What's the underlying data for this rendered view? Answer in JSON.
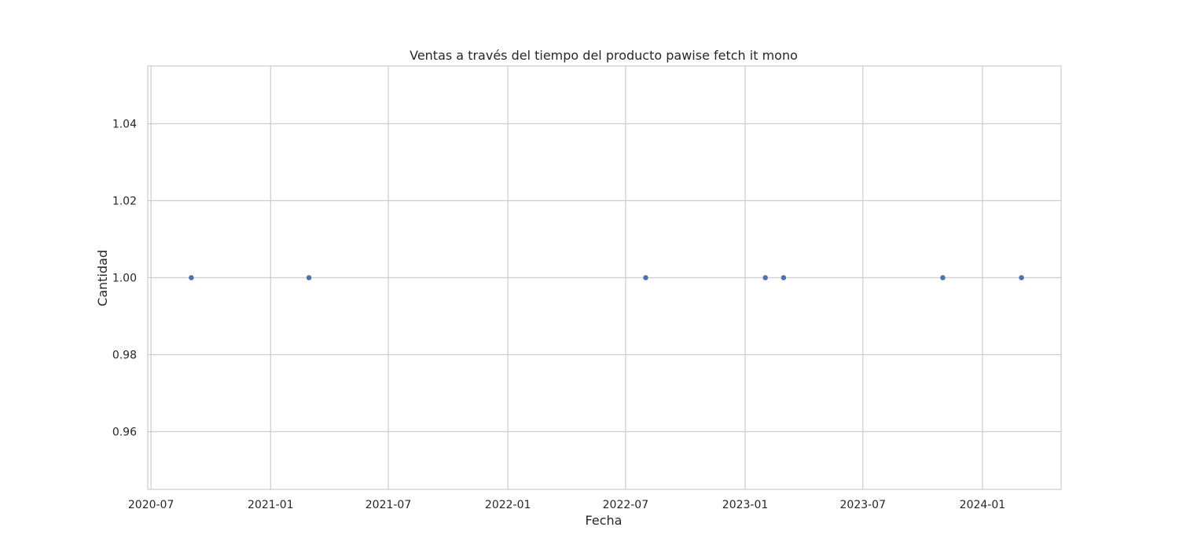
{
  "chart_data": {
    "type": "scatter",
    "title": "Ventas a través del tiempo del producto pawise fetch it mono",
    "xlabel": "Fecha",
    "ylabel": "Cantidad",
    "x_ticks": [
      "2020-07",
      "2021-01",
      "2021-07",
      "2022-01",
      "2022-07",
      "2023-01",
      "2023-07",
      "2024-01"
    ],
    "y_ticks": [
      "0.96",
      "0.98",
      "1.00",
      "1.02",
      "1.04"
    ],
    "xlim": [
      "2020-06-26",
      "2024-05-01"
    ],
    "ylim": [
      0.945,
      1.055
    ],
    "grid": true,
    "series": [
      {
        "x": [
          "2020-09-01",
          "2021-03-01",
          "2022-08-01",
          "2023-02-01",
          "2023-03-01",
          "2023-11-01",
          "2024-03-01"
        ],
        "y": [
          1,
          1,
          1,
          1,
          1,
          1,
          1
        ],
        "color": "#4c72b0"
      }
    ],
    "colors": {
      "grid": "#cccccc",
      "frame": "#cccccc",
      "text": "#262626"
    }
  }
}
